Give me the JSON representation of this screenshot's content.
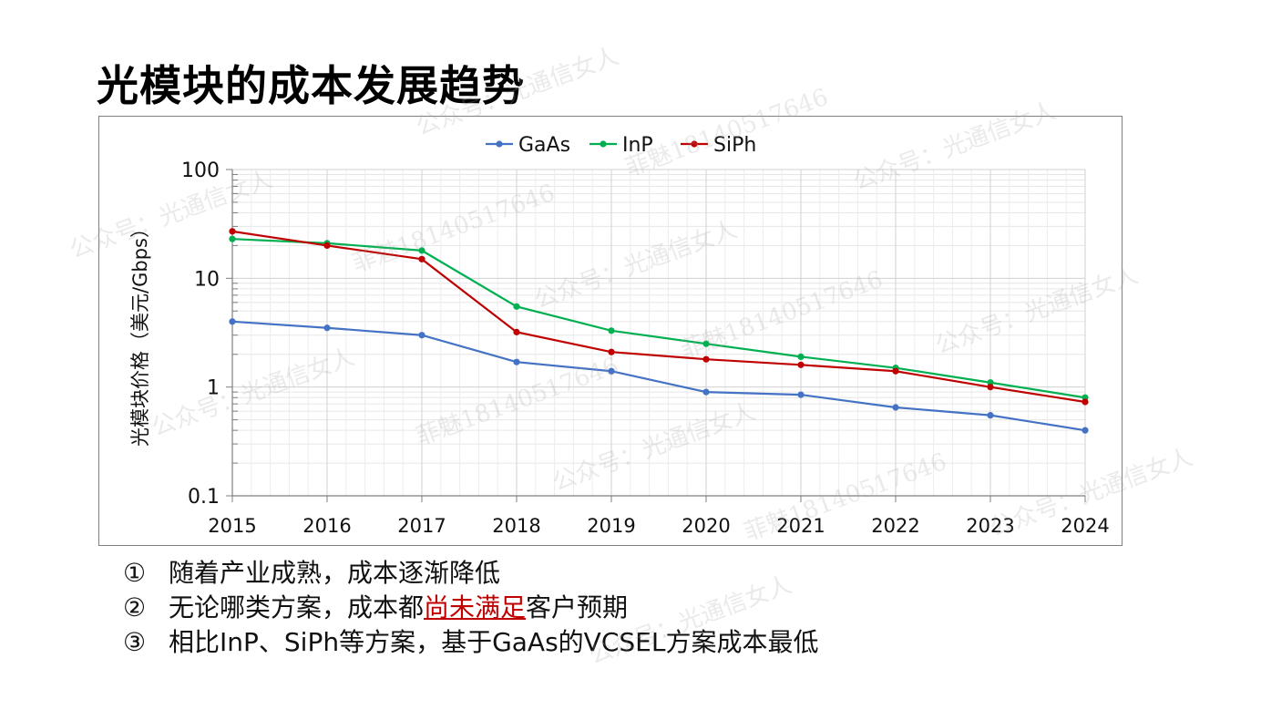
{
  "title": "光模块的成本发展趋势",
  "watermarks": [
    "公众号：光通信女人",
    "菲魅18140517646"
  ],
  "chart_data": {
    "type": "line",
    "yscale": "log",
    "ylim": [
      0.1,
      100
    ],
    "yticks": [
      "0.1",
      "1",
      "10",
      "100"
    ],
    "ylabel": "光模块价格（美元/Gbps）",
    "x": [
      "2015",
      "2016",
      "2017",
      "2018",
      "2019",
      "2020",
      "2021",
      "2022",
      "2023",
      "2024"
    ],
    "series": [
      {
        "name": "GaAs",
        "color": "#4472c4",
        "values": [
          4.0,
          3.5,
          3.0,
          1.7,
          1.4,
          0.9,
          0.85,
          0.65,
          0.55,
          0.4
        ]
      },
      {
        "name": "InP",
        "color": "#00b050",
        "values": [
          23,
          21,
          18,
          5.5,
          3.3,
          2.5,
          1.9,
          1.5,
          1.1,
          0.8
        ]
      },
      {
        "name": "SiPh",
        "color": "#c00000",
        "values": [
          27,
          20,
          15,
          3.2,
          2.1,
          1.8,
          1.6,
          1.4,
          1.0,
          0.73
        ]
      }
    ],
    "legend_position": "top-center",
    "grid": true
  },
  "bullets": [
    {
      "num": "①",
      "text": "随着产业成熟，成本逐渐降低"
    },
    {
      "num": "②",
      "before": "无论哪类方案，成本都",
      "highlight": "尚未满足",
      "after": "客户预期"
    },
    {
      "num": "③",
      "text": "相比InP、SiPh等方案，基于GaAs的VCSEL方案成本最低"
    }
  ]
}
